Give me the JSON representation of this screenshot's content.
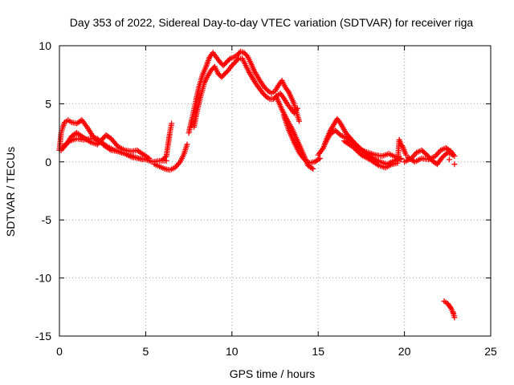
{
  "chart_data": {
    "type": "scatter",
    "title": "Day 353 of 2022, Sidereal Day-to-day VTEC variation (SDTVAR) for receiver riga",
    "xlabel": "GPS time / hours",
    "ylabel": "SDTVAR / TECUs",
    "xlim": [
      0,
      25
    ],
    "ylim": [
      -15,
      10
    ],
    "xticks": [
      0,
      5,
      10,
      15,
      20,
      25
    ],
    "xtick_labels": [
      "0",
      "5",
      "10",
      "15",
      "20",
      "25"
    ],
    "yticks": [
      -15,
      -10,
      -5,
      0,
      5,
      10
    ],
    "ytick_labels": [
      "-15",
      "-10",
      "-5",
      "0",
      "5",
      "10"
    ],
    "grid": true,
    "marker": "plus",
    "series": [
      {
        "name": "SDTVAR",
        "color": "#ff0000",
        "points": [
          [
            0.0,
            1.0
          ],
          [
            0.1,
            2.5
          ],
          [
            0.2,
            3.0
          ],
          [
            0.3,
            3.4
          ],
          [
            0.5,
            3.6
          ],
          [
            0.7,
            3.4
          ],
          [
            1.0,
            3.3
          ],
          [
            1.3,
            3.6
          ],
          [
            1.6,
            3.0
          ],
          [
            1.9,
            2.3
          ],
          [
            2.2,
            1.8
          ],
          [
            2.5,
            1.6
          ],
          [
            2.8,
            1.3
          ],
          [
            3.2,
            1.0
          ],
          [
            3.6,
            0.8
          ],
          [
            4.0,
            0.6
          ],
          [
            4.4,
            0.4
          ],
          [
            4.8,
            0.2
          ],
          [
            0.1,
            1.0
          ],
          [
            0.4,
            1.5
          ],
          [
            0.7,
            2.2
          ],
          [
            1.0,
            2.5
          ],
          [
            1.4,
            2.1
          ],
          [
            1.8,
            1.7
          ],
          [
            2.2,
            1.5
          ],
          [
            2.7,
            2.3
          ],
          [
            3.0,
            2.0
          ],
          [
            3.4,
            1.3
          ],
          [
            3.8,
            1.0
          ],
          [
            4.2,
            0.9
          ],
          [
            4.5,
            1.0
          ],
          [
            4.9,
            0.6
          ],
          [
            5.2,
            0.3
          ],
          [
            0.2,
            1.3
          ],
          [
            0.6,
            1.8
          ],
          [
            1.0,
            2.0
          ],
          [
            1.4,
            1.9
          ],
          [
            1.8,
            2.0
          ],
          [
            2.2,
            2.0
          ],
          [
            2.6,
            1.4
          ],
          [
            3.0,
            1.0
          ],
          [
            3.4,
            0.9
          ],
          [
            3.8,
            0.7
          ],
          [
            4.2,
            0.4
          ],
          [
            4.6,
            0.3
          ],
          [
            5.0,
            0.2
          ],
          [
            5.4,
            0.0
          ],
          [
            5.8,
            0.1
          ],
          [
            6.2,
            0.1
          ],
          [
            5.5,
            -0.2
          ],
          [
            5.8,
            -0.4
          ],
          [
            6.1,
            -0.6
          ],
          [
            6.4,
            -0.7
          ],
          [
            6.7,
            -0.5
          ],
          [
            7.0,
            0.0
          ],
          [
            7.2,
            0.6
          ],
          [
            7.4,
            1.5
          ],
          [
            6.0,
            0.2
          ],
          [
            6.2,
            0.5
          ],
          [
            6.3,
            1.5
          ],
          [
            6.4,
            2.5
          ],
          [
            6.5,
            3.3
          ],
          [
            7.5,
            2.5
          ],
          [
            7.7,
            3.8
          ],
          [
            7.9,
            5.2
          ],
          [
            8.1,
            6.5
          ],
          [
            8.3,
            7.5
          ],
          [
            8.5,
            8.2
          ],
          [
            8.7,
            9.0
          ],
          [
            8.9,
            9.4
          ],
          [
            9.1,
            9.0
          ],
          [
            9.3,
            8.6
          ],
          [
            9.5,
            8.3
          ],
          [
            9.7,
            8.6
          ],
          [
            9.9,
            8.9
          ],
          [
            10.1,
            9.0
          ],
          [
            10.3,
            9.2
          ],
          [
            10.5,
            9.5
          ],
          [
            10.7,
            9.4
          ],
          [
            10.9,
            9.1
          ],
          [
            11.1,
            8.5
          ],
          [
            11.3,
            7.8
          ],
          [
            11.5,
            7.3
          ],
          [
            11.7,
            6.8
          ],
          [
            11.9,
            6.4
          ],
          [
            12.1,
            6.1
          ],
          [
            12.3,
            5.9
          ],
          [
            12.5,
            6.1
          ],
          [
            12.7,
            6.6
          ],
          [
            12.9,
            7.0
          ],
          [
            13.1,
            6.4
          ],
          [
            13.3,
            6.0
          ],
          [
            13.6,
            5.0
          ],
          [
            13.9,
            3.5
          ],
          [
            7.8,
            3.0
          ],
          [
            8.0,
            4.5
          ],
          [
            8.2,
            5.7
          ],
          [
            8.4,
            6.8
          ],
          [
            8.6,
            7.4
          ],
          [
            8.8,
            7.9
          ],
          [
            9.0,
            8.2
          ],
          [
            9.2,
            7.6
          ],
          [
            9.4,
            7.3
          ],
          [
            9.6,
            7.6
          ],
          [
            9.8,
            7.9
          ],
          [
            10.0,
            8.3
          ],
          [
            10.2,
            8.6
          ],
          [
            10.4,
            8.9
          ],
          [
            10.6,
            8.9
          ],
          [
            10.8,
            8.3
          ],
          [
            11.0,
            7.7
          ],
          [
            11.2,
            7.2
          ],
          [
            11.4,
            6.7
          ],
          [
            11.6,
            6.3
          ],
          [
            11.8,
            5.9
          ],
          [
            12.0,
            5.6
          ],
          [
            12.2,
            5.4
          ],
          [
            12.4,
            5.4
          ],
          [
            12.6,
            5.7
          ],
          [
            12.8,
            5.9
          ],
          [
            13.0,
            5.5
          ],
          [
            13.2,
            5.0
          ],
          [
            13.4,
            4.6
          ],
          [
            13.6,
            4.2
          ],
          [
            13.8,
            4.6
          ],
          [
            12.6,
            5.5
          ],
          [
            12.9,
            4.5
          ],
          [
            13.2,
            3.6
          ],
          [
            13.5,
            2.8
          ],
          [
            13.8,
            1.8
          ],
          [
            14.1,
            0.8
          ],
          [
            14.4,
            -0.3
          ],
          [
            14.7,
            -0.6
          ],
          [
            13.0,
            4.0
          ],
          [
            13.3,
            2.7
          ],
          [
            13.6,
            1.7
          ],
          [
            13.9,
            0.8
          ],
          [
            14.2,
            0.2
          ],
          [
            14.5,
            -0.1
          ],
          [
            14.8,
            0.0
          ],
          [
            15.1,
            0.3
          ],
          [
            15.0,
            0.6
          ],
          [
            15.3,
            1.2
          ],
          [
            15.5,
            2.0
          ],
          [
            15.7,
            2.7
          ],
          [
            15.9,
            3.2
          ],
          [
            16.1,
            3.7
          ],
          [
            16.3,
            3.3
          ],
          [
            16.6,
            2.5
          ],
          [
            17.0,
            1.8
          ],
          [
            17.4,
            1.2
          ],
          [
            17.8,
            0.7
          ],
          [
            18.2,
            0.3
          ],
          [
            18.6,
            0.0
          ],
          [
            19.0,
            -0.2
          ],
          [
            19.4,
            0.1
          ],
          [
            19.8,
            0.3
          ],
          [
            15.4,
            1.6
          ],
          [
            15.7,
            2.4
          ],
          [
            16.0,
            2.7
          ],
          [
            16.3,
            2.3
          ],
          [
            16.7,
            2.0
          ],
          [
            17.1,
            1.6
          ],
          [
            17.5,
            1.0
          ],
          [
            17.9,
            0.8
          ],
          [
            18.3,
            0.6
          ],
          [
            18.7,
            0.5
          ],
          [
            19.1,
            0.7
          ],
          [
            19.5,
            0.4
          ],
          [
            19.8,
            0.2
          ],
          [
            16.5,
            1.8
          ],
          [
            17.0,
            1.3
          ],
          [
            17.5,
            0.6
          ],
          [
            18.0,
            0.2
          ],
          [
            18.5,
            -0.3
          ],
          [
            18.9,
            -0.5
          ],
          [
            19.3,
            -0.2
          ],
          [
            19.6,
            -0.1
          ],
          [
            19.7,
            1.9
          ],
          [
            19.8,
            1.5
          ],
          [
            19.9,
            1.3
          ],
          [
            20.0,
            0.9
          ],
          [
            20.1,
            0.6
          ],
          [
            20.0,
            0.0
          ],
          [
            20.4,
            0.3
          ],
          [
            20.7,
            0.8
          ],
          [
            21.0,
            1.0
          ],
          [
            21.3,
            0.6
          ],
          [
            21.6,
            0.1
          ],
          [
            21.9,
            -0.2
          ],
          [
            22.2,
            0.4
          ],
          [
            22.5,
            0.8
          ],
          [
            22.8,
            0.6
          ],
          [
            20.2,
            0.4
          ],
          [
            20.6,
            0.0
          ],
          [
            21.0,
            0.3
          ],
          [
            21.4,
            0.2
          ],
          [
            21.8,
            0.5
          ],
          [
            22.1,
            1.0
          ],
          [
            22.4,
            1.2
          ],
          [
            22.7,
            0.9
          ],
          [
            22.9,
            0.5
          ],
          [
            22.9,
            -0.2
          ],
          [
            22.6,
            0.2
          ],
          [
            22.3,
            -12.0
          ],
          [
            22.5,
            -12.2
          ],
          [
            22.6,
            -12.4
          ],
          [
            22.7,
            -12.6
          ],
          [
            22.8,
            -12.9
          ],
          [
            22.85,
            -13.1
          ],
          [
            22.9,
            -13.4
          ]
        ]
      }
    ]
  }
}
